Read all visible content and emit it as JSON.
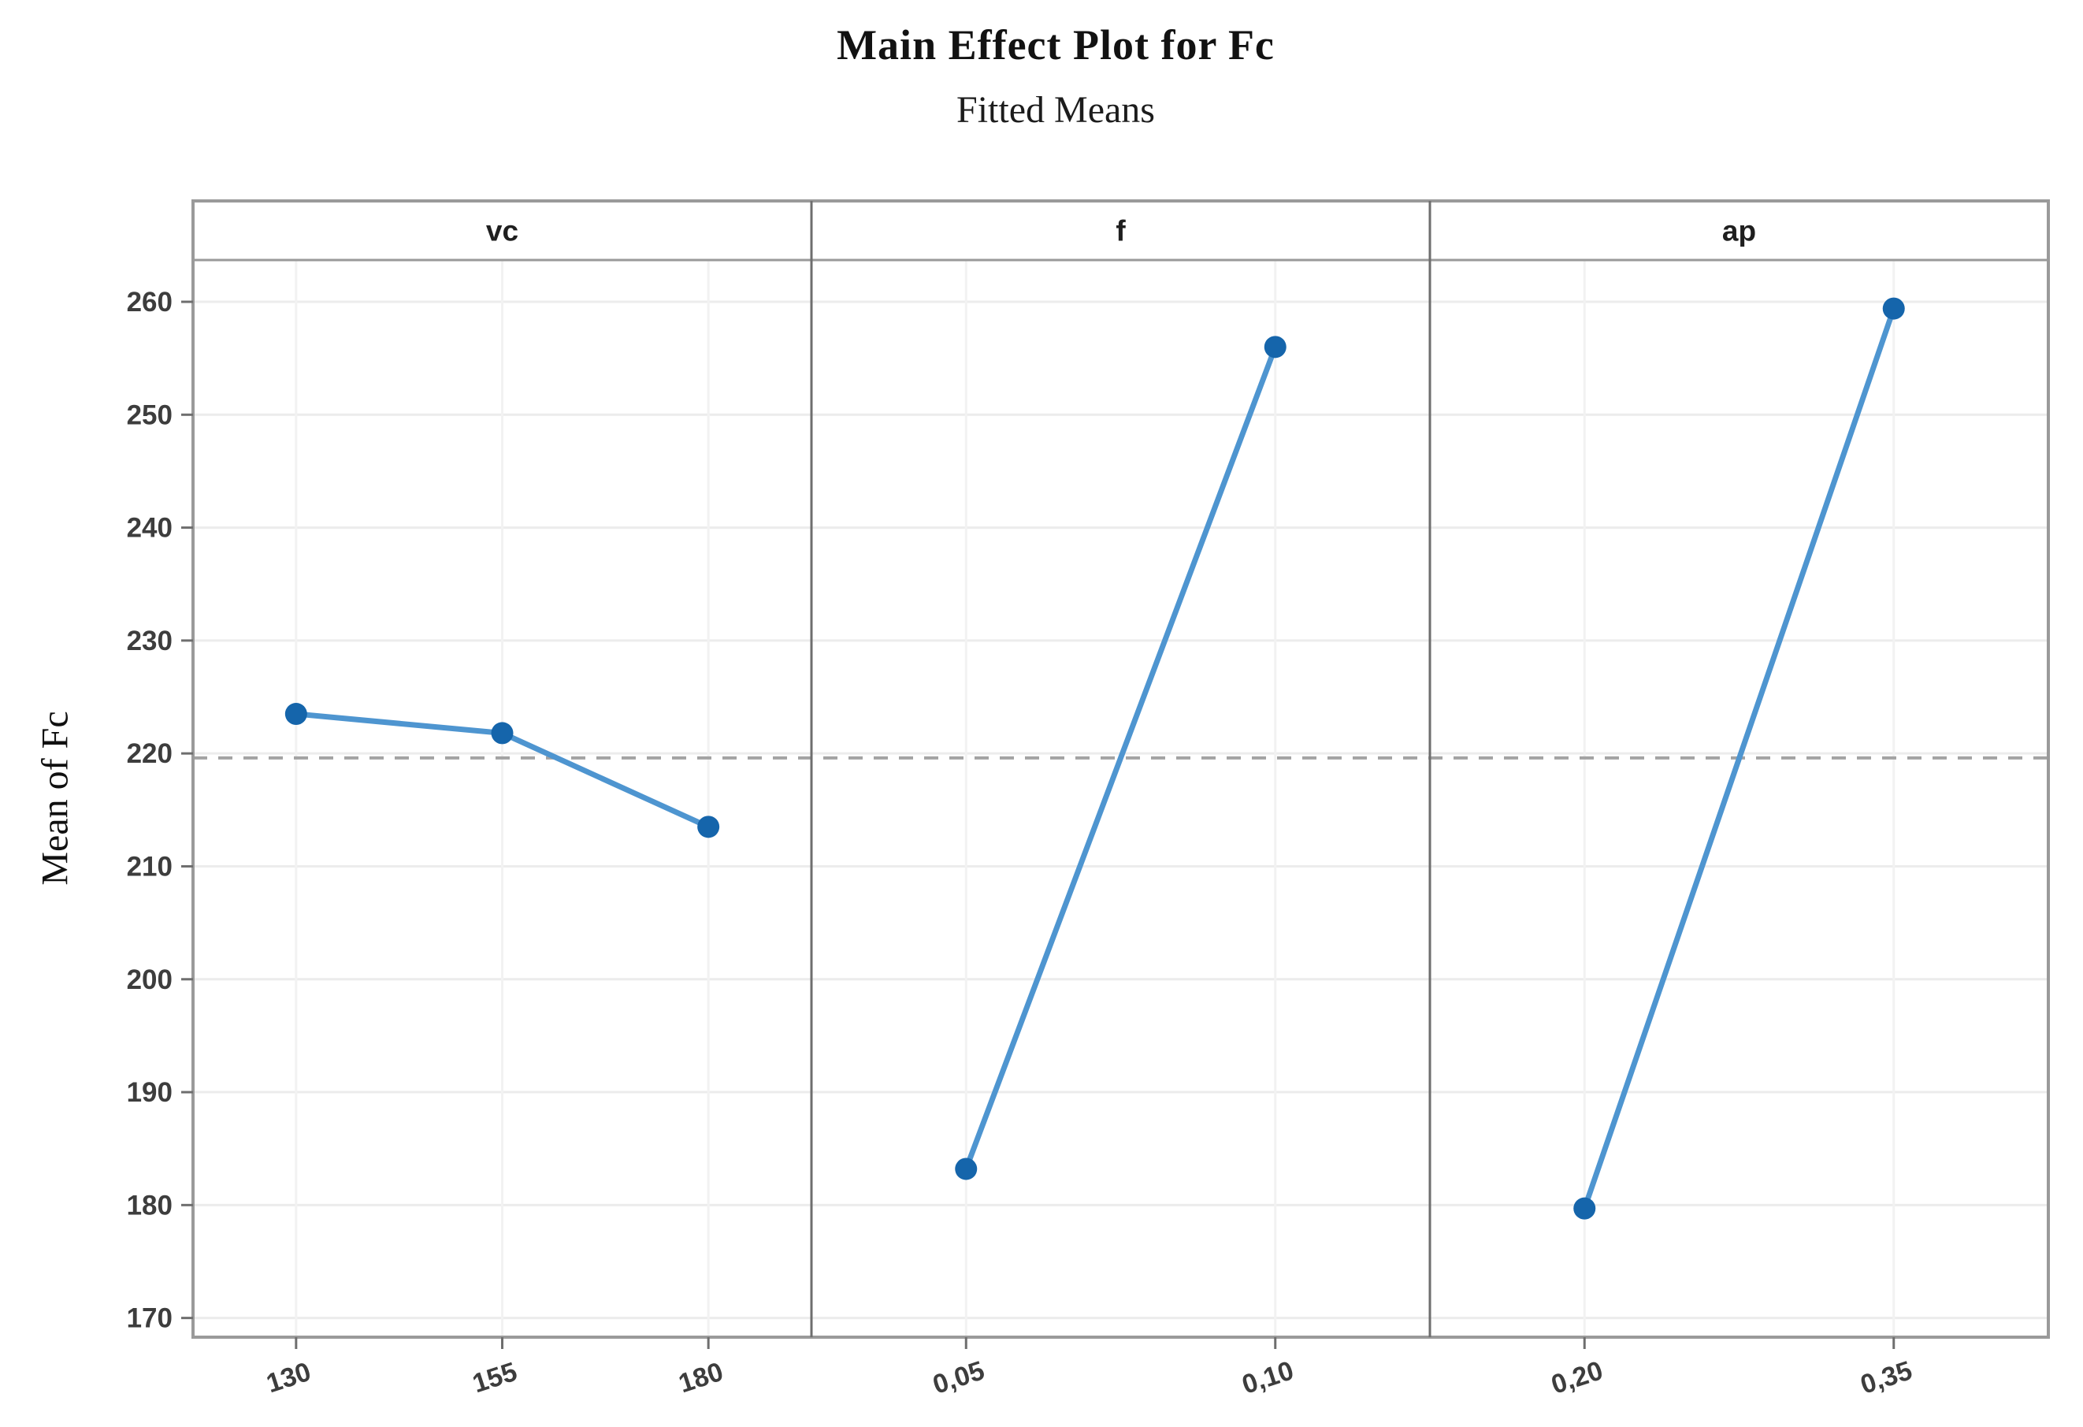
{
  "figure": {
    "title": "Main Effect Plot for Fc",
    "subtitle": "Fitted Means"
  },
  "y_axis": {
    "label": "Mean of Fc"
  },
  "chart_data": {
    "type": "line",
    "title": "Main Effect Plot for Fc",
    "subtitle": "Fitted Means",
    "ylabel": "Mean of Fc",
    "ylim": [
      168.3,
      263.7
    ],
    "yticks": [
      170,
      180,
      190,
      200,
      210,
      220,
      230,
      240,
      250,
      260
    ],
    "grid": true,
    "legend": "none",
    "reference_line": {
      "value": 219.6,
      "style": "dashed"
    },
    "panels": [
      {
        "factor": "vc",
        "categories": [
          "130",
          "155",
          "180"
        ],
        "values": [
          223.5,
          221.8,
          213.5
        ]
      },
      {
        "factor": "f",
        "categories": [
          "0,05",
          "0,10"
        ],
        "values": [
          183.2,
          256.0
        ]
      },
      {
        "factor": "ap",
        "categories": [
          "0,20",
          "0,35"
        ],
        "values": [
          179.7,
          259.4
        ]
      }
    ],
    "colors": {
      "line": "#4e95d0",
      "marker": "#1565ab",
      "grid": "#ececec",
      "frame": "#9a9a9a",
      "separator": "#6e6e6e",
      "reference": "#a3a3a3",
      "tick_text": "#3d3d3d",
      "header_text": "#1f1f1f"
    }
  }
}
